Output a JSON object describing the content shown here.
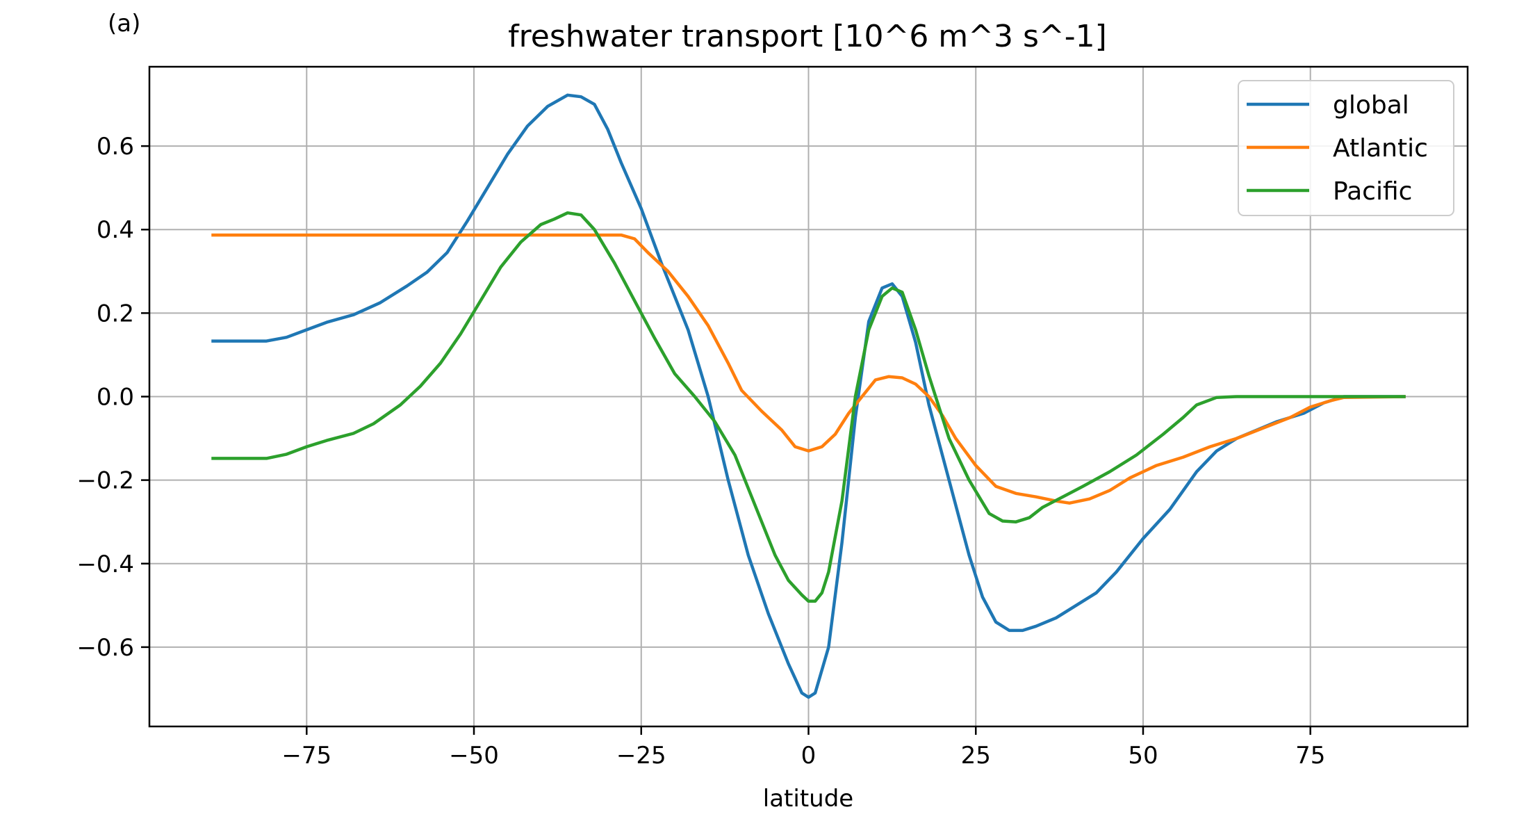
{
  "panel_label": "(a)",
  "chart_data": {
    "type": "line",
    "title": "freshwater transport [10^6 m^3 s^-1]",
    "xlabel": "latitude",
    "ylabel": "",
    "xlim": [
      -98.5,
      98.5
    ],
    "ylim": [
      -0.79,
      0.79
    ],
    "xticks": [
      -75,
      -50,
      -25,
      0,
      25,
      50,
      75
    ],
    "xtick_labels": [
      "−75",
      "−50",
      "−25",
      "0",
      "25",
      "50",
      "75"
    ],
    "yticks": [
      -0.6,
      -0.4,
      -0.2,
      0.0,
      0.2,
      0.4,
      0.6
    ],
    "ytick_labels": [
      "−0.6",
      "−0.4",
      "−0.2",
      "0.0",
      "0.2",
      "0.4",
      "0.6"
    ],
    "grid": true,
    "legend_position": "top-right",
    "series": [
      {
        "name": "global",
        "color": "#1f77b4",
        "points": [
          [
            -89,
            0.133
          ],
          [
            -85,
            0.133
          ],
          [
            -81,
            0.133
          ],
          [
            -78,
            0.142
          ],
          [
            -75,
            0.16
          ],
          [
            -72,
            0.178
          ],
          [
            -68,
            0.196
          ],
          [
            -64,
            0.225
          ],
          [
            -60,
            0.265
          ],
          [
            -57,
            0.298
          ],
          [
            -54,
            0.345
          ],
          [
            -51,
            0.42
          ],
          [
            -48,
            0.5
          ],
          [
            -45,
            0.58
          ],
          [
            -42,
            0.648
          ],
          [
            -39,
            0.695
          ],
          [
            -36,
            0.722
          ],
          [
            -34,
            0.718
          ],
          [
            -32,
            0.7
          ],
          [
            -30,
            0.64
          ],
          [
            -28,
            0.56
          ],
          [
            -25,
            0.45
          ],
          [
            -22,
            0.32
          ],
          [
            -18,
            0.16
          ],
          [
            -15,
            0.0
          ],
          [
            -12,
            -0.2
          ],
          [
            -9,
            -0.38
          ],
          [
            -6,
            -0.52
          ],
          [
            -3,
            -0.64
          ],
          [
            -1,
            -0.71
          ],
          [
            0,
            -0.72
          ],
          [
            1,
            -0.71
          ],
          [
            3,
            -0.6
          ],
          [
            5,
            -0.35
          ],
          [
            7,
            -0.05
          ],
          [
            9,
            0.18
          ],
          [
            11,
            0.26
          ],
          [
            12.5,
            0.27
          ],
          [
            14,
            0.24
          ],
          [
            16,
            0.13
          ],
          [
            18,
            -0.02
          ],
          [
            21,
            -0.2
          ],
          [
            24,
            -0.38
          ],
          [
            26,
            -0.48
          ],
          [
            28,
            -0.54
          ],
          [
            30,
            -0.56
          ],
          [
            32,
            -0.56
          ],
          [
            34,
            -0.55
          ],
          [
            37,
            -0.53
          ],
          [
            40,
            -0.5
          ],
          [
            43,
            -0.47
          ],
          [
            46,
            -0.42
          ],
          [
            50,
            -0.34
          ],
          [
            54,
            -0.27
          ],
          [
            58,
            -0.18
          ],
          [
            61,
            -0.13
          ],
          [
            64,
            -0.1
          ],
          [
            67,
            -0.08
          ],
          [
            70,
            -0.06
          ],
          [
            74,
            -0.04
          ],
          [
            77,
            -0.015
          ],
          [
            80,
            0.0
          ],
          [
            89,
            0.0
          ]
        ]
      },
      {
        "name": "Atlantic",
        "color": "#ff7f0e",
        "points": [
          [
            -89,
            0.387
          ],
          [
            -28,
            0.387
          ],
          [
            -26,
            0.378
          ],
          [
            -24,
            0.345
          ],
          [
            -21,
            0.3
          ],
          [
            -18,
            0.24
          ],
          [
            -15,
            0.17
          ],
          [
            -12,
            0.08
          ],
          [
            -10,
            0.015
          ],
          [
            -7,
            -0.035
          ],
          [
            -4,
            -0.08
          ],
          [
            -2,
            -0.12
          ],
          [
            0,
            -0.13
          ],
          [
            2,
            -0.12
          ],
          [
            4,
            -0.09
          ],
          [
            6,
            -0.04
          ],
          [
            8,
            0.0
          ],
          [
            10,
            0.04
          ],
          [
            12,
            0.048
          ],
          [
            14,
            0.045
          ],
          [
            16,
            0.03
          ],
          [
            18,
            0.0
          ],
          [
            20,
            -0.045
          ],
          [
            22,
            -0.1
          ],
          [
            25,
            -0.165
          ],
          [
            28,
            -0.215
          ],
          [
            31,
            -0.232
          ],
          [
            34,
            -0.24
          ],
          [
            37,
            -0.25
          ],
          [
            39,
            -0.255
          ],
          [
            42,
            -0.245
          ],
          [
            45,
            -0.225
          ],
          [
            48,
            -0.195
          ],
          [
            52,
            -0.165
          ],
          [
            56,
            -0.145
          ],
          [
            60,
            -0.12
          ],
          [
            64,
            -0.1
          ],
          [
            68,
            -0.075
          ],
          [
            72,
            -0.05
          ],
          [
            75,
            -0.025
          ],
          [
            78,
            -0.01
          ],
          [
            80,
            -0.002
          ],
          [
            89,
            0.0
          ]
        ]
      },
      {
        "name": "Pacific",
        "color": "#2ca02c",
        "points": [
          [
            -89,
            -0.148
          ],
          [
            -81,
            -0.148
          ],
          [
            -78,
            -0.138
          ],
          [
            -75,
            -0.12
          ],
          [
            -72,
            -0.105
          ],
          [
            -68,
            -0.088
          ],
          [
            -65,
            -0.065
          ],
          [
            -61,
            -0.02
          ],
          [
            -58,
            0.025
          ],
          [
            -55,
            0.08
          ],
          [
            -52,
            0.15
          ],
          [
            -49,
            0.23
          ],
          [
            -46,
            0.31
          ],
          [
            -43,
            0.37
          ],
          [
            -40,
            0.412
          ],
          [
            -38,
            0.425
          ],
          [
            -36,
            0.44
          ],
          [
            -34,
            0.435
          ],
          [
            -32,
            0.4
          ],
          [
            -29,
            0.32
          ],
          [
            -26,
            0.23
          ],
          [
            -23,
            0.14
          ],
          [
            -20,
            0.055
          ],
          [
            -17,
            0.0
          ],
          [
            -14,
            -0.06
          ],
          [
            -11,
            -0.14
          ],
          [
            -8,
            -0.26
          ],
          [
            -5,
            -0.38
          ],
          [
            -3,
            -0.44
          ],
          [
            -1,
            -0.475
          ],
          [
            0,
            -0.49
          ],
          [
            1,
            -0.49
          ],
          [
            2,
            -0.47
          ],
          [
            3,
            -0.42
          ],
          [
            5,
            -0.25
          ],
          [
            7,
            0.0
          ],
          [
            9,
            0.16
          ],
          [
            11,
            0.24
          ],
          [
            12.5,
            0.26
          ],
          [
            14,
            0.25
          ],
          [
            16,
            0.16
          ],
          [
            18,
            0.05
          ],
          [
            21,
            -0.1
          ],
          [
            24,
            -0.2
          ],
          [
            27,
            -0.28
          ],
          [
            29,
            -0.298
          ],
          [
            31,
            -0.3
          ],
          [
            33,
            -0.29
          ],
          [
            35,
            -0.265
          ],
          [
            38,
            -0.24
          ],
          [
            41,
            -0.215
          ],
          [
            45,
            -0.18
          ],
          [
            49,
            -0.14
          ],
          [
            53,
            -0.09
          ],
          [
            56,
            -0.05
          ],
          [
            58,
            -0.02
          ],
          [
            61,
            -0.002
          ],
          [
            64,
            0.0
          ],
          [
            89,
            0.0
          ]
        ]
      }
    ]
  }
}
